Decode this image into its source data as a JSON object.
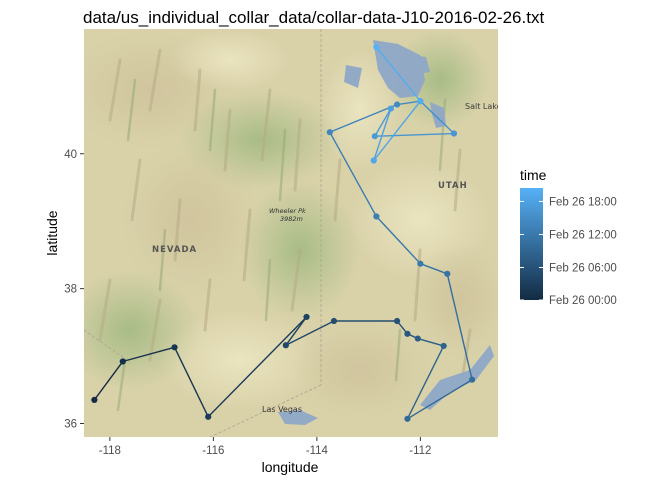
{
  "chart_data": {
    "type": "scatter",
    "title": "data/us_individual_collar_data/collar-data-J10-2016-02-26.txt",
    "xlabel": "longitude",
    "ylabel": "latitude",
    "xlim": [
      -118.5,
      -110.5
    ],
    "ylim": [
      35.8,
      41.85
    ],
    "x_ticks": [
      -118,
      -116,
      -114,
      -112
    ],
    "x_tick_labels": [
      "-118",
      "-116",
      "-114",
      "-112"
    ],
    "y_ticks": [
      36,
      38,
      40
    ],
    "y_tick_labels": [
      "36",
      "38",
      "40"
    ],
    "legend": {
      "title": "time",
      "placement": "right",
      "labels": [
        "Feb 26 18:00",
        "Feb 26 12:00",
        "Feb 26 06:00",
        "Feb 26 00:00"
      ],
      "label_fractions": [
        0.88,
        0.585,
        0.29,
        0.0
      ],
      "color_low": "#132B43",
      "color_high": "#56B1F7"
    },
    "grid": true,
    "path": true,
    "series": [
      {
        "points": [
          {
            "lon": -118.3,
            "lat": 36.35,
            "t": 0.0
          },
          {
            "lon": -117.75,
            "lat": 36.92,
            "t": 0.04
          },
          {
            "lon": -116.75,
            "lat": 37.13,
            "t": 0.08
          },
          {
            "lon": -116.1,
            "lat": 36.1,
            "t": 0.12
          },
          {
            "lon": -114.2,
            "lat": 37.58,
            "t": 0.17
          },
          {
            "lon": -114.6,
            "lat": 37.16,
            "t": 0.21
          },
          {
            "lon": -113.67,
            "lat": 37.52,
            "t": 0.25
          },
          {
            "lon": -112.45,
            "lat": 37.52,
            "t": 0.29
          },
          {
            "lon": -112.25,
            "lat": 37.33,
            "t": 0.33
          },
          {
            "lon": -112.05,
            "lat": 37.26,
            "t": 0.37
          },
          {
            "lon": -111.55,
            "lat": 37.15,
            "t": 0.42
          },
          {
            "lon": -112.25,
            "lat": 36.07,
            "t": 0.46
          },
          {
            "lon": -111.0,
            "lat": 36.65,
            "t": 0.5
          },
          {
            "lon": -111.48,
            "lat": 38.22,
            "t": 0.54
          },
          {
            "lon": -112.0,
            "lat": 38.37,
            "t": 0.58
          },
          {
            "lon": -112.85,
            "lat": 39.07,
            "t": 0.62
          },
          {
            "lon": -113.75,
            "lat": 40.32,
            "t": 0.67
          },
          {
            "lon": -112.45,
            "lat": 40.73,
            "t": 0.71
          },
          {
            "lon": -112.0,
            "lat": 40.78,
            "t": 0.75
          },
          {
            "lon": -111.35,
            "lat": 40.3,
            "t": 0.79
          },
          {
            "lon": -112.88,
            "lat": 40.26,
            "t": 0.83
          },
          {
            "lon": -112.57,
            "lat": 40.67,
            "t": 0.87
          },
          {
            "lon": -112.9,
            "lat": 39.9,
            "t": 0.92
          },
          {
            "lon": -112.0,
            "lat": 40.78,
            "t": 0.96
          },
          {
            "lon": -112.85,
            "lat": 41.58,
            "t": 1.0
          }
        ]
      }
    ]
  },
  "map": {
    "labels": {
      "nevada": "NEVADA",
      "utah": "UTAH",
      "salt_lake_city": "Salt Lake City",
      "wheeler_peak": "Wheeler Pk",
      "wheeler_peak_elevation": "3982m",
      "las_vegas": "Las Vegas"
    }
  }
}
